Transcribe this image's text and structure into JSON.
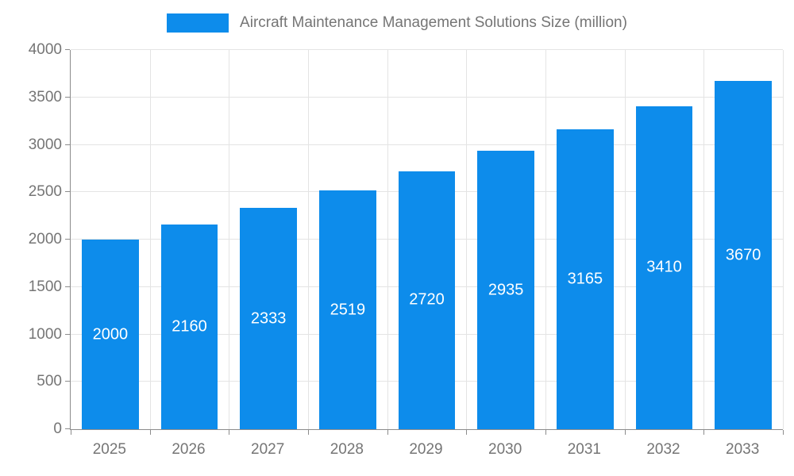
{
  "chart_data": {
    "type": "bar",
    "title": "Aircraft Maintenance Management Solutions Size (million)",
    "categories": [
      "2025",
      "2026",
      "2027",
      "2028",
      "2029",
      "2030",
      "2031",
      "2032",
      "2033"
    ],
    "values": [
      2000,
      2160,
      2333,
      2519,
      2720,
      2935,
      3165,
      3410,
      3670
    ],
    "xlabel": "",
    "ylabel": "",
    "ylim": [
      0,
      4000
    ],
    "yticks": [
      0,
      500,
      1000,
      1500,
      2000,
      2500,
      3000,
      3500,
      4000
    ],
    "bar_color": "#0d8ceb",
    "value_label_color": "#ffffff",
    "grid": true,
    "legend_position": "top-center"
  }
}
